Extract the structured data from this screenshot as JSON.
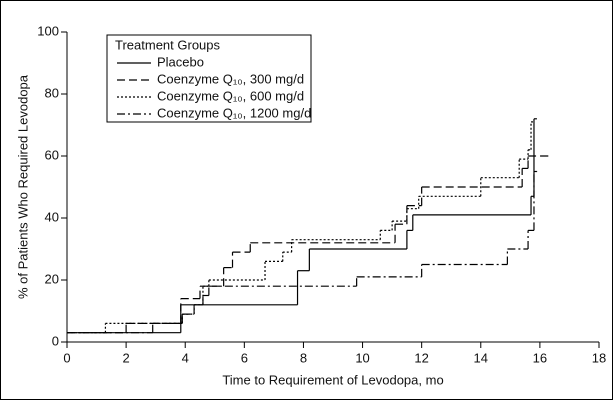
{
  "chart_data": {
    "type": "step",
    "xlabel": "Time to Requirement of Levodopa, mo",
    "ylabel": "% of Patients Who Required Levodopa",
    "legend_title": "Treatment Groups",
    "legend": "upper left",
    "xlim": [
      0,
      18
    ],
    "xticks": [
      0,
      2,
      4,
      6,
      8,
      10,
      12,
      14,
      16,
      18
    ],
    "ylim": [
      0,
      100
    ],
    "yticks": [
      0,
      20,
      40,
      60,
      80,
      100
    ],
    "series": [
      {
        "name": "Placebo",
        "color": "#000000",
        "linestyle": "solid",
        "x": [
          0,
          3.85,
          7.8,
          8.2,
          11.5,
          11.7,
          15.7,
          15.8,
          15.9
        ],
        "values": [
          3,
          12,
          23,
          30,
          36,
          41,
          47,
          72,
          72
        ]
      },
      {
        "name": "Coenzyme Q₁₀, 300 mg/d",
        "color": "#000000",
        "linestyle": "dashed",
        "x": [
          0,
          2,
          3.85,
          4.5,
          5.3,
          5.6,
          6.2,
          11.1,
          11.5,
          12.0,
          15.4,
          15.6,
          16.3
        ],
        "values": [
          3,
          6,
          14,
          18,
          24,
          29,
          32,
          38,
          44,
          50,
          56,
          60,
          60
        ]
      },
      {
        "name": "Coenzyme Q₁₀, 600 mg/d",
        "color": "#000000",
        "linestyle": "dotted",
        "x": [
          0,
          1.3,
          3.9,
          4.3,
          4.6,
          4.8,
          6.7,
          7.3,
          7.6,
          10.6,
          11.0,
          11.5,
          11.9,
          14.0,
          15.3,
          15.6,
          15.7,
          15.8
        ],
        "values": [
          3,
          6,
          9,
          12,
          18,
          20,
          26,
          29,
          33,
          36,
          39,
          43,
          47,
          53,
          59,
          62,
          71,
          71
        ]
      },
      {
        "name": "Coenzyme Q₁₀, 1200 mg/d",
        "color": "#000000",
        "linestyle": "dashdot",
        "x": [
          0,
          2.9,
          3.9,
          4.3,
          4.6,
          4.8,
          9.8,
          12.0,
          14.9,
          15.6,
          15.8,
          15.9
        ],
        "values": [
          3,
          6,
          9,
          12,
          15,
          18,
          21,
          25,
          30,
          36,
          55,
          55
        ]
      }
    ]
  }
}
